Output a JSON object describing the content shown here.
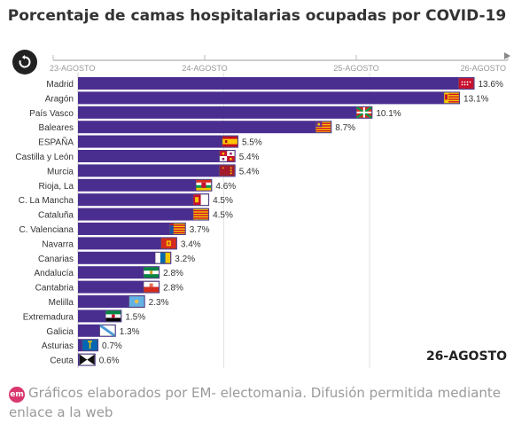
{
  "chart_data": {
    "type": "bar",
    "orientation": "horizontal",
    "title": "Porcentaje de camas hospitalarias ocupadas por COVID-19",
    "date_label": "26-AGOSTO",
    "timeline": {
      "ticks": [
        "23-AGOSTO",
        "24-AGOSTO",
        "25-AGOSTO",
        "26-AGOSTO"
      ],
      "current": "26-AGOSTO"
    },
    "bar_color": "#4a2e8f",
    "categories": [
      "Madrid",
      "Aragón",
      "País Vasco",
      "Baleares",
      "ESPAÑA",
      "Castilla y León",
      "Murcia",
      "Rioja, La",
      "C. La Mancha",
      "Cataluña",
      "C. Valenciana",
      "Navarra",
      "Canarias",
      "Andalucía",
      "Cantabria",
      "Melilla",
      "Extremadura",
      "Galicia",
      "Asturias",
      "Ceuta"
    ],
    "values": [
      13.6,
      13.1,
      10.1,
      8.7,
      5.5,
      5.4,
      5.4,
      4.6,
      4.5,
      4.5,
      3.7,
      3.4,
      3.2,
      2.8,
      2.8,
      2.3,
      1.5,
      1.3,
      0.7,
      0.6
    ],
    "value_labels": [
      "13.6%",
      "13.1%",
      "10.1%",
      "8.7%",
      "5.5%",
      "5.4%",
      "5.4%",
      "4.6%",
      "4.5%",
      "4.5%",
      "3.7%",
      "3.4%",
      "3.2%",
      "2.8%",
      "2.8%",
      "2.3%",
      "1.5%",
      "1.3%",
      "0.7%",
      "0.6%"
    ],
    "flags": [
      "madrid-flag-icon",
      "aragon-flag-icon",
      "pais-vasco-flag-icon",
      "baleares-flag-icon",
      "espana-flag-icon",
      "castilla-y-leon-flag-icon",
      "murcia-flag-icon",
      "rioja-flag-icon",
      "castilla-la-mancha-flag-icon",
      "cataluna-flag-icon",
      "comunidad-valenciana-flag-icon",
      "navarra-flag-icon",
      "canarias-flag-icon",
      "andalucia-flag-icon",
      "cantabria-flag-icon",
      "melilla-flag-icon",
      "extremadura-flag-icon",
      "galicia-flag-icon",
      "asturias-flag-icon",
      "ceuta-flag-icon"
    ],
    "xlim": [
      0,
      14.8
    ],
    "grid": true
  },
  "footer": {
    "logo": "em",
    "text": "Gráficos elaborados por EM- electomania. Difusión permitida mediante enlace a la web"
  },
  "controls": {
    "replay_icon": "replay-icon"
  }
}
